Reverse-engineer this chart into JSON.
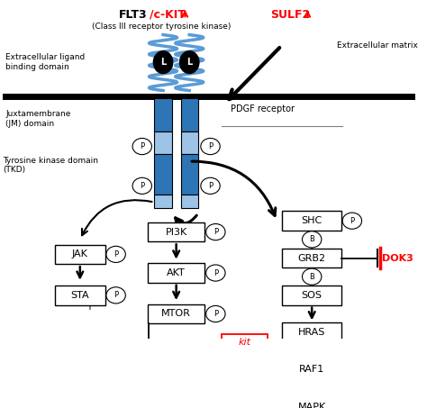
{
  "flt3_text": "FLT3",
  "ckit_text": "/c-KIT",
  "subtitle": "(Class III receptor tyrosine kinase)",
  "sulf2_text": "SULF2",
  "extracellular_matrix": "Extracellular matrix",
  "pdgf_receptor": "PDGF receptor",
  "extracellular_label": "Extracellular ligand\nbinding domain",
  "jm_label": "Juxtamembrane\n(JM) domain",
  "tkd_label": "Tyrosine kinase domain\n(TKD)",
  "dok3_text": "DOK3",
  "kit_text": "kit",
  "black": "#000000",
  "red": "#FF0000",
  "coil_blue": "#5B9BD5",
  "bar_blue": "#2E75B6",
  "bar_light": "#9DC3E6",
  "white": "#FFFFFF",
  "bg_color": "#FFFFFF"
}
